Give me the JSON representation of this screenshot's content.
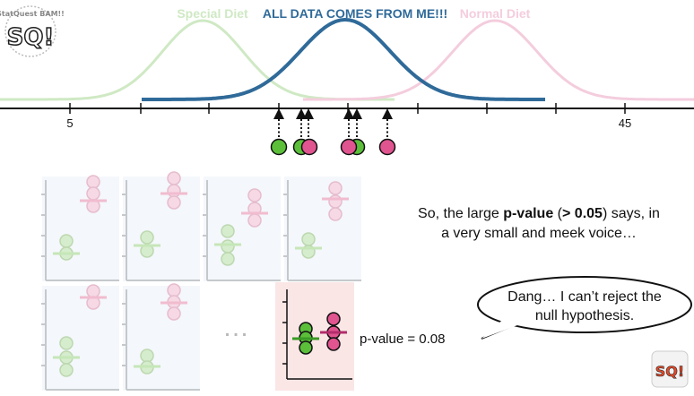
{
  "logo": {
    "big": "SQ!",
    "small": "StatQuest BAM!!",
    "corner": "SQ!"
  },
  "top_plot": {
    "title_left": "Special Diet",
    "title_center": "ALL DATA COMES FROM ME!!!",
    "title_right": "Normal Diet",
    "ticks": [
      "5",
      "45"
    ],
    "colors": {
      "special": "#cfe9c4",
      "shared": "#2f6a99",
      "normal": "#f4cddd",
      "green": "#5bbf3a",
      "pink": "#e0548f"
    }
  },
  "grid": {
    "ellipsis": "…"
  },
  "highlight": {
    "pvalue_label": "p-value = 0.08"
  },
  "message": {
    "pre": "So, the large ",
    "bold1": "p-value",
    "mid": " (",
    "bold2": "> 0.05",
    "post": ") says, in",
    "line2": "a very small and meek voice…"
  },
  "bubble": {
    "line1": "Dang… I can’t reject the",
    "line2": "null hypothesis."
  }
}
